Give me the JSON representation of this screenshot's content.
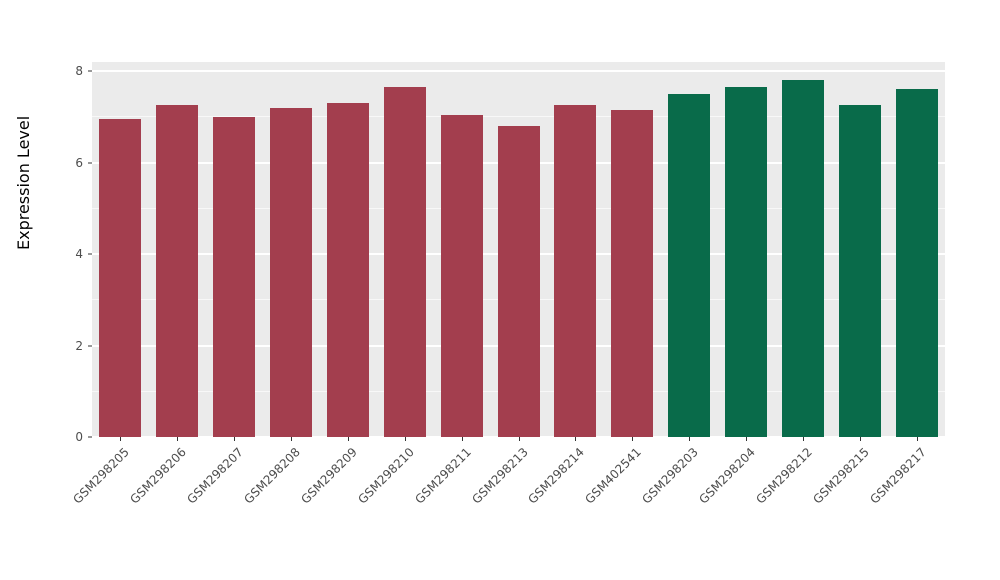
{
  "chart_data": {
    "type": "bar",
    "title": "",
    "xlabel": "",
    "ylabel": "Expression Level",
    "ylim": [
      0,
      8.2
    ],
    "yticks": [
      0,
      2,
      4,
      6,
      8
    ],
    "yticks_minor": [
      1,
      3,
      5,
      7
    ],
    "grid": true,
    "legend_position": "none",
    "panel_background": "#EBEBEB",
    "categories": [
      "GSM298205",
      "GSM298206",
      "GSM298207",
      "GSM298208",
      "GSM298209",
      "GSM298210",
      "GSM298211",
      "GSM298213",
      "GSM298214",
      "GSM402541",
      "GSM298203",
      "GSM298204",
      "GSM298212",
      "GSM298215",
      "GSM298217"
    ],
    "values": [
      6.95,
      7.25,
      7.0,
      7.2,
      7.3,
      7.65,
      7.05,
      6.8,
      7.25,
      7.15,
      7.5,
      7.65,
      7.8,
      7.25,
      7.6
    ],
    "bar_groups": [
      "group1",
      "group1",
      "group1",
      "group1",
      "group1",
      "group1",
      "group1",
      "group1",
      "group1",
      "group1",
      "group2",
      "group2",
      "group2",
      "group2",
      "group2"
    ],
    "group_colors": {
      "group1": "#A33E4E",
      "group2": "#096B4A"
    }
  }
}
